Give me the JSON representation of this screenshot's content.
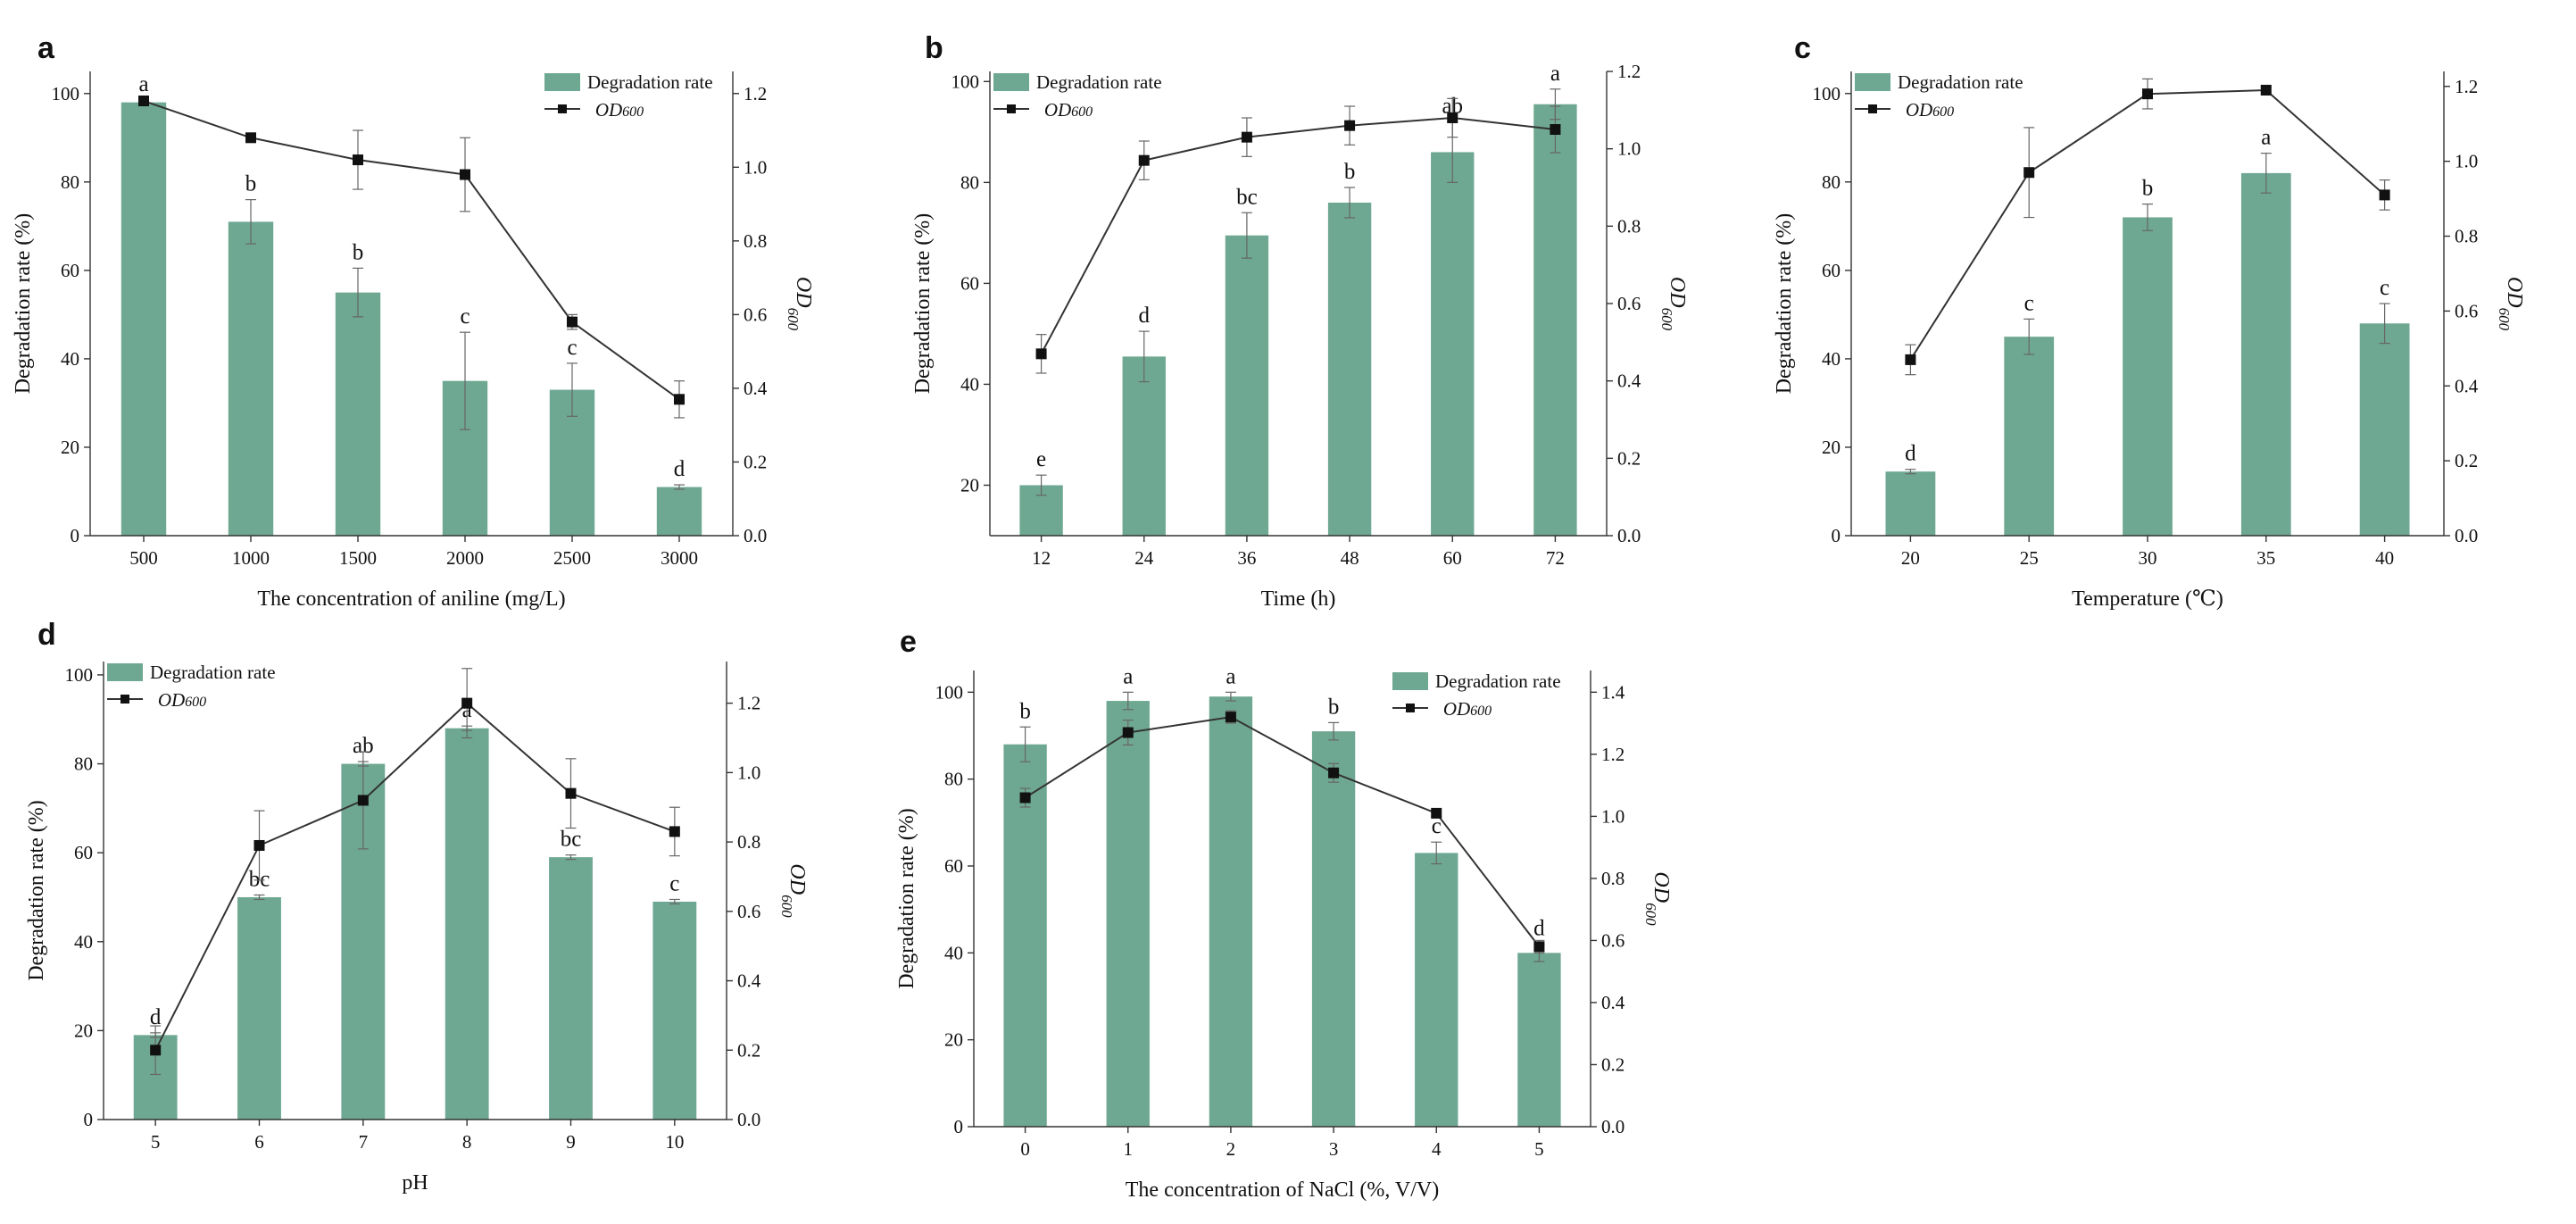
{
  "figure": {
    "bar_color": "#6fa892",
    "line_color": "#333333",
    "marker_color": "#111111",
    "error_color": "#666666"
  },
  "chart_data": [
    {
      "panel": "a",
      "type": "bar",
      "title": "",
      "xlabel": "The concentration of aniline (mg/L)",
      "ylabel": "Degradation rate (%)",
      "y2label": "OD600",
      "categories": [
        "500",
        "1000",
        "1500",
        "2000",
        "2500",
        "3000"
      ],
      "ylim": [
        0,
        105
      ],
      "yticks": [
        "0",
        "20",
        "40",
        "60",
        "80",
        "100"
      ],
      "y2lim": [
        0,
        1.26
      ],
      "y2ticks": [
        "0.0",
        "0.2",
        "0.4",
        "0.6",
        "0.8",
        "1.0",
        "1.2"
      ],
      "legend_position": "top-right",
      "series": [
        {
          "name": "Degradation rate",
          "kind": "bar",
          "axis": "left",
          "values": [
            98,
            71,
            55,
            35,
            33,
            11
          ],
          "errors": [
            0.5,
            5,
            5.5,
            11,
            6,
            0.5
          ],
          "labels": [
            "a",
            "b",
            "b",
            "c",
            "c",
            "d"
          ]
        },
        {
          "name": "OD600",
          "kind": "line",
          "axis": "right",
          "values": [
            1.18,
            1.08,
            1.02,
            0.98,
            0.58,
            0.37
          ],
          "errors": [
            0.01,
            0.01,
            0.08,
            0.1,
            0.02,
            0.05
          ]
        }
      ]
    },
    {
      "panel": "b",
      "type": "bar",
      "title": "",
      "xlabel": "Time (h)",
      "ylabel": "Degradation rate (%)",
      "y2label": "OD600",
      "categories": [
        "12",
        "24",
        "36",
        "48",
        "60",
        "72"
      ],
      "ylim": [
        10,
        102
      ],
      "yticks": [
        "20",
        "40",
        "60",
        "80",
        "100"
      ],
      "y2lim": [
        0,
        1.2
      ],
      "y2ticks": [
        "0.0",
        "0.2",
        "0.4",
        "0.6",
        "0.8",
        "1.0",
        "1.2"
      ],
      "legend_position": "top-left",
      "series": [
        {
          "name": "Degradation rate",
          "kind": "bar",
          "axis": "left",
          "values": [
            20,
            45.5,
            69.5,
            76,
            86,
            95.5
          ],
          "errors": [
            2,
            5,
            4.5,
            3,
            6,
            3
          ],
          "labels": [
            "e",
            "d",
            "bc",
            "b",
            "ab",
            "a"
          ]
        },
        {
          "name": "OD600",
          "kind": "line",
          "axis": "right",
          "values": [
            0.47,
            0.97,
            1.03,
            1.06,
            1.08,
            1.05
          ],
          "errors": [
            0.05,
            0.05,
            0.05,
            0.05,
            0.05,
            0.06
          ]
        }
      ]
    },
    {
      "panel": "c",
      "type": "bar",
      "title": "",
      "xlabel": "Temperature (℃)",
      "ylabel": "Degradation rate (%)",
      "y2label": "OD600",
      "categories": [
        "20",
        "25",
        "30",
        "35",
        "40"
      ],
      "ylim": [
        0,
        105
      ],
      "yticks": [
        "0",
        "20",
        "40",
        "60",
        "80",
        "100"
      ],
      "y2lim": [
        0,
        1.24
      ],
      "y2ticks": [
        "0.0",
        "0.2",
        "0.4",
        "0.6",
        "0.8",
        "1.0",
        "1.2"
      ],
      "legend_position": "top-left",
      "series": [
        {
          "name": "Degradation rate",
          "kind": "bar",
          "axis": "left",
          "values": [
            14.5,
            45,
            72,
            82,
            48
          ],
          "errors": [
            0.5,
            4,
            3,
            4.5,
            4.5
          ],
          "labels": [
            "d",
            "c",
            "b",
            "a",
            "c"
          ]
        },
        {
          "name": "OD600",
          "kind": "line",
          "axis": "right",
          "values": [
            0.47,
            0.97,
            1.18,
            1.19,
            0.91
          ],
          "errors": [
            0.04,
            0.12,
            0.04,
            0.01,
            0.04
          ]
        }
      ]
    },
    {
      "panel": "d",
      "type": "bar",
      "title": "",
      "xlabel": "pH",
      "ylabel": "Degradation rate (%)",
      "y2label": "OD600",
      "categories": [
        "5",
        "6",
        "7",
        "8",
        "9",
        "10"
      ],
      "ylim": [
        0,
        103
      ],
      "yticks": [
        "0",
        "20",
        "40",
        "60",
        "80",
        "100"
      ],
      "y2lim": [
        0,
        1.32
      ],
      "y2ticks": [
        "0.0",
        "0.2",
        "0.4",
        "0.6",
        "0.8",
        "1.0",
        "1.2"
      ],
      "legend_position": "top-left",
      "series": [
        {
          "name": "Degradation rate",
          "kind": "bar",
          "axis": "left",
          "values": [
            19,
            50,
            80,
            88,
            59,
            49
          ],
          "errors": [
            0.5,
            0.5,
            0.5,
            0.5,
            0.5,
            0.5
          ],
          "labels": [
            "d",
            "bc",
            "ab",
            "a",
            "bc",
            "c"
          ]
        },
        {
          "name": "OD600",
          "kind": "line",
          "axis": "right",
          "values": [
            0.2,
            0.79,
            0.92,
            1.2,
            0.94,
            0.83
          ],
          "errors": [
            0.07,
            0.1,
            0.14,
            0.1,
            0.1,
            0.07
          ]
        }
      ]
    },
    {
      "panel": "e",
      "type": "bar",
      "title": "",
      "xlabel": "The concentration of NaCl (%,  V/V)",
      "ylabel": "Degradation rate (%)",
      "y2label": "OD600",
      "categories": [
        "0",
        "1",
        "2",
        "3",
        "4",
        "5"
      ],
      "ylim": [
        0,
        105
      ],
      "yticks": [
        "0",
        "20",
        "40",
        "60",
        "80",
        "100"
      ],
      "y2lim": [
        0,
        1.47
      ],
      "y2ticks": [
        "0.0",
        "0.2",
        "0.4",
        "0.6",
        "0.8",
        "1.0",
        "1.2",
        "1.4"
      ],
      "legend_position": "top-right",
      "series": [
        {
          "name": "Degradation rate",
          "kind": "bar",
          "axis": "left",
          "values": [
            88,
            98,
            99,
            91,
            63,
            40
          ],
          "errors": [
            4,
            2,
            1,
            2,
            2.5,
            2
          ],
          "labels": [
            "b",
            "a",
            "a",
            "b",
            "c",
            "d"
          ]
        },
        {
          "name": "OD600",
          "kind": "line",
          "axis": "right",
          "values": [
            1.06,
            1.27,
            1.32,
            1.14,
            1.01,
            0.58
          ],
          "errors": [
            0.03,
            0.04,
            0.02,
            0.03,
            0.01,
            0.02
          ]
        }
      ]
    }
  ]
}
